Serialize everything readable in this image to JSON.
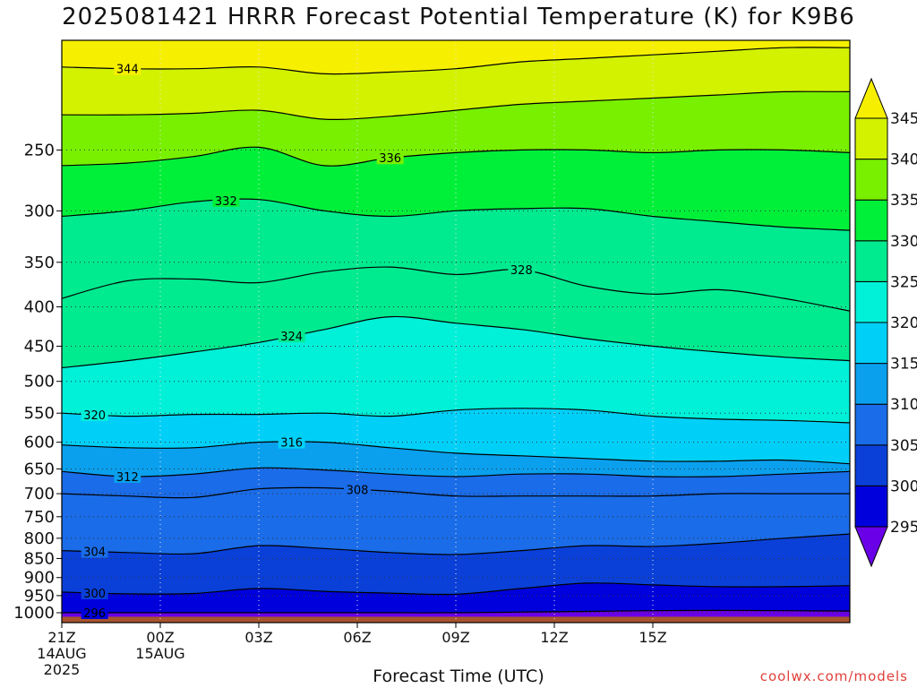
{
  "chart_data": {
    "type": "heatmap",
    "title": "2025081421 HRRR Forecast Potential Temperature (K) for K9B6",
    "xlabel": "Forecast Time (UTC)",
    "ylabel": "",
    "x_range_hours": [
      -6,
      18
    ],
    "y_range_hPa": [
      1030,
      180
    ],
    "y_scale": "log",
    "grid": true,
    "x_ticks": [
      {
        "hour": -6,
        "lines": [
          "21Z",
          "14AUG",
          "2025"
        ]
      },
      {
        "hour": -3,
        "lines": [
          "00Z",
          "15AUG"
        ]
      },
      {
        "hour": 0,
        "lines": [
          "03Z"
        ]
      },
      {
        "hour": 3,
        "lines": [
          "06Z"
        ]
      },
      {
        "hour": 6,
        "lines": [
          "09Z"
        ]
      },
      {
        "hour": 9,
        "lines": [
          "12Z"
        ]
      },
      {
        "hour": 12,
        "lines": [
          "15Z"
        ]
      }
    ],
    "y_ticks": [
      250,
      300,
      350,
      400,
      450,
      500,
      550,
      600,
      650,
      700,
      750,
      800,
      850,
      900,
      950,
      1000
    ],
    "colorbar": {
      "levels": [
        295,
        300,
        305,
        310,
        315,
        320,
        325,
        330,
        335,
        340,
        345
      ],
      "colors": [
        "#6a00e8",
        "#0000dc",
        "#0a40d8",
        "#1a6ce8",
        "#0aa0ee",
        "#00d0f8",
        "#00f0d8",
        "#00ea90",
        "#00f03a",
        "#78f000",
        "#d2f200",
        "#f6f000"
      ]
    },
    "terrain_color": "#a8552e",
    "surface_pressure_hPa": 1012,
    "series": [
      {
        "theta": 296,
        "label_at_hour": -5,
        "p": [
          1000,
          1000,
          1000,
          1000,
          1000,
          1000,
          1000,
          998,
          996,
          994,
          993,
          994,
          995
        ]
      },
      {
        "theta": 300,
        "label_at_hour": -5,
        "p": [
          940,
          945,
          944,
          930,
          938,
          943,
          946,
          930,
          915,
          920,
          925,
          925,
          922
        ]
      },
      {
        "theta": 304,
        "label_at_hour": -5,
        "p": [
          830,
          835,
          838,
          818,
          825,
          835,
          840,
          830,
          818,
          820,
          812,
          800,
          790
        ]
      },
      {
        "theta": 308,
        "label_at_hour": 3,
        "p": [
          700,
          705,
          708,
          690,
          688,
          695,
          705,
          705,
          705,
          705,
          700,
          700,
          700
        ]
      },
      {
        "theta": 312,
        "label_at_hour": -4,
        "p": [
          655,
          665,
          660,
          648,
          652,
          660,
          665,
          660,
          660,
          665,
          665,
          660,
          655
        ]
      },
      {
        "theta": 316,
        "label_at_hour": 1,
        "p": [
          605,
          610,
          610,
          600,
          600,
          610,
          620,
          625,
          630,
          635,
          635,
          633,
          640
        ]
      },
      {
        "theta": 320,
        "label_at_hour": -5,
        "p": [
          550,
          555,
          552,
          552,
          550,
          555,
          545,
          542,
          545,
          555,
          560,
          562,
          566
        ]
      },
      {
        "theta": 324,
        "label_at_hour": 1,
        "p": [
          480,
          470,
          458,
          445,
          428,
          412,
          420,
          428,
          440,
          450,
          458,
          465,
          470
        ]
      },
      {
        "theta": 328,
        "label_at_hour": 8,
        "p": [
          390,
          370,
          368,
          372,
          360,
          355,
          363,
          358,
          376,
          385,
          380,
          390,
          405
        ]
      },
      {
        "theta": 332,
        "label_at_hour": -1,
        "p": [
          305,
          300,
          292,
          290,
          300,
          305,
          300,
          298,
          298,
          305,
          310,
          315,
          318
        ]
      },
      {
        "theta": 336,
        "label_at_hour": 4,
        "p": [
          262,
          260,
          255,
          248,
          262,
          256,
          252,
          250,
          250,
          252,
          250,
          250,
          252
        ]
      },
      {
        "theta": 340,
        "label_at_hour": null,
        "p": [
          225,
          225,
          224,
          222,
          228,
          226,
          222,
          218,
          216,
          214,
          212,
          210,
          210
        ]
      },
      {
        "theta": 344,
        "label_at_hour": -4,
        "p": [
          195,
          196,
          196,
          195,
          199,
          198,
          196,
          192,
          190,
          188,
          186,
          184,
          184
        ]
      }
    ]
  },
  "credit": "coolwx.com/models"
}
